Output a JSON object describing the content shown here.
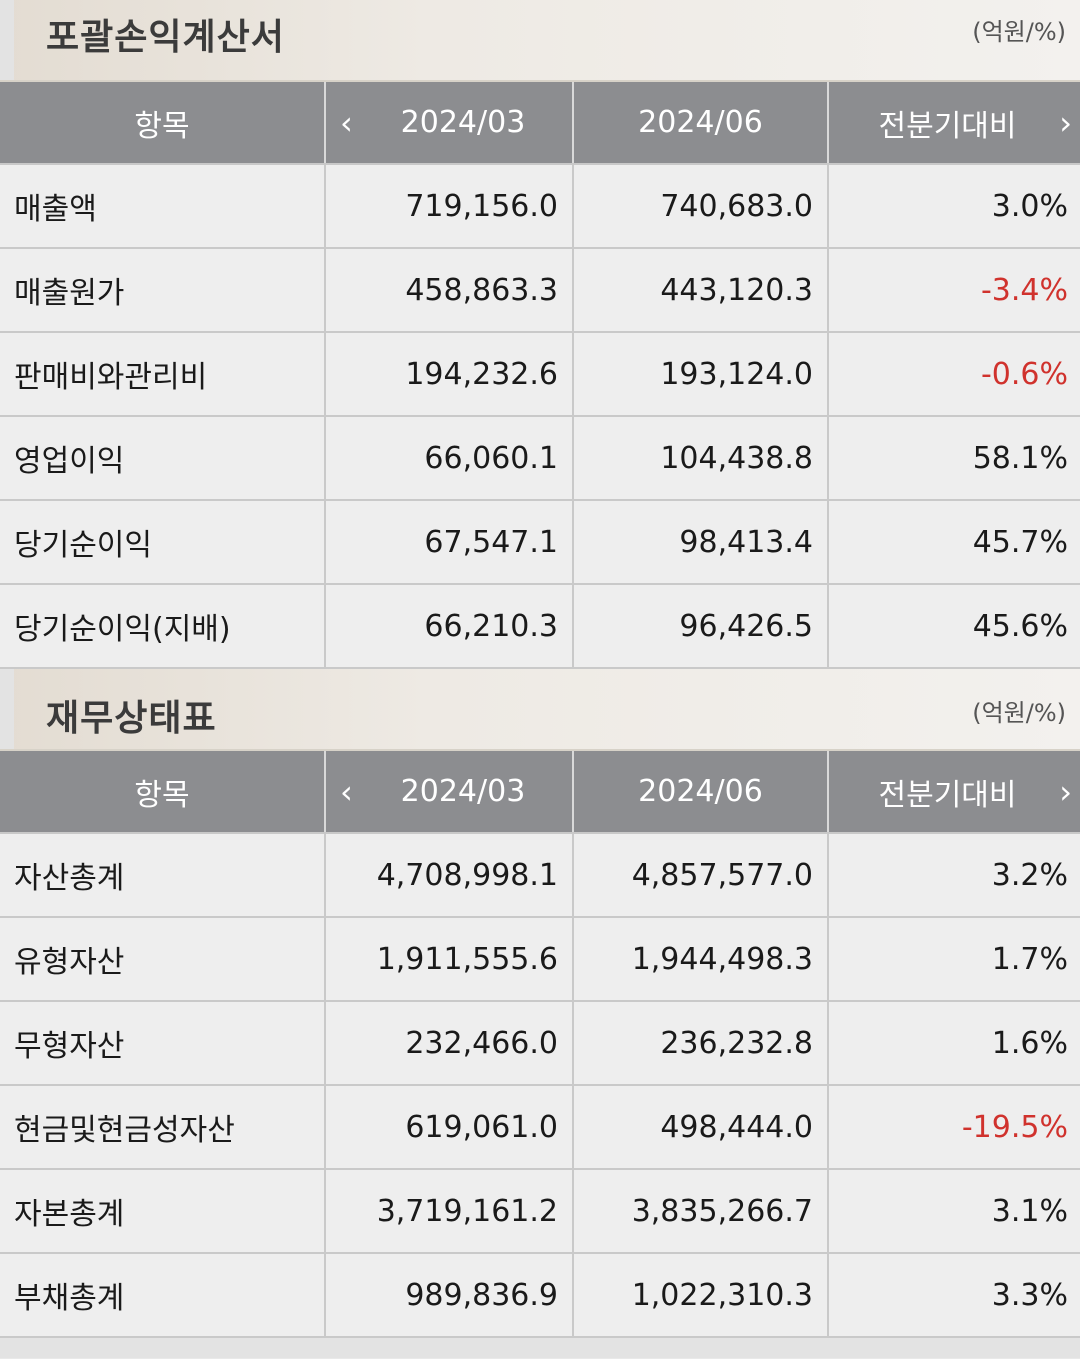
{
  "income_statement": {
    "title": "포괄손익계산서",
    "unit": "(억원/%)",
    "headers": {
      "item": "항목",
      "prev": "2024/03",
      "curr": "2024/06",
      "change": "전분기대비"
    },
    "rows": [
      {
        "item": "매출액",
        "prev": "719,156.0",
        "curr": "740,683.0",
        "change": "3.0%"
      },
      {
        "item": "매출원가",
        "prev": "458,863.3",
        "curr": "443,120.3",
        "change": "-3.4%"
      },
      {
        "item": "판매비와관리비",
        "prev": "194,232.6",
        "curr": "193,124.0",
        "change": "-0.6%"
      },
      {
        "item": "영업이익",
        "prev": "66,060.1",
        "curr": "104,438.8",
        "change": "58.1%"
      },
      {
        "item": "당기순이익",
        "prev": "67,547.1",
        "curr": "98,413.4",
        "change": "45.7%"
      },
      {
        "item": "당기순이익(지배)",
        "prev": "66,210.3",
        "curr": "96,426.5",
        "change": "45.6%"
      }
    ]
  },
  "balance_sheet": {
    "title": "재무상태표",
    "unit": "(억원/%)",
    "headers": {
      "item": "항목",
      "prev": "2024/03",
      "curr": "2024/06",
      "change": "전분기대비"
    },
    "rows": [
      {
        "item": "자산총계",
        "prev": "4,708,998.1",
        "curr": "4,857,577.0",
        "change": "3.2%"
      },
      {
        "item": "유형자산",
        "prev": "1,911,555.6",
        "curr": "1,944,498.3",
        "change": "1.7%"
      },
      {
        "item": "무형자산",
        "prev": "232,466.0",
        "curr": "236,232.8",
        "change": "1.6%"
      },
      {
        "item": "현금및현금성자산",
        "prev": "619,061.0",
        "curr": "498,444.0",
        "change": "-19.5%"
      },
      {
        "item": "자본총계",
        "prev": "3,719,161.2",
        "curr": "3,835,266.7",
        "change": "3.1%"
      },
      {
        "item": "부채총계",
        "prev": "989,836.9",
        "curr": "1,022,310.3",
        "change": "3.3%"
      }
    ]
  },
  "icons": {
    "prev_period": "chevron-left-icon",
    "next_period": "chevron-right-icon"
  },
  "colors": {
    "negative": "#d0322d",
    "header_bg": "#8c8d90"
  }
}
